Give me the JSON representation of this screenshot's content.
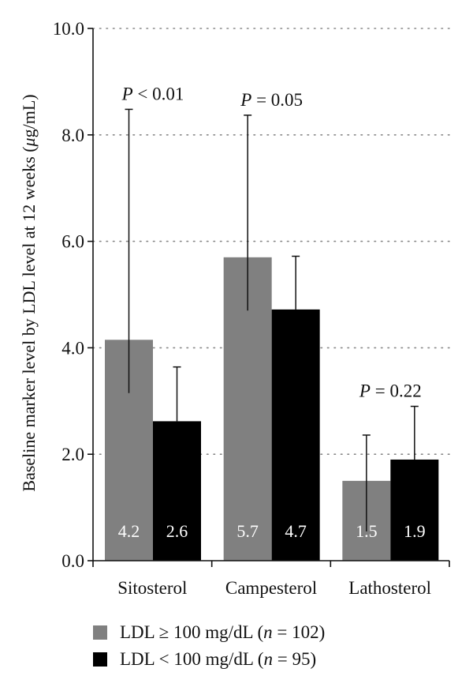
{
  "chart_data": {
    "type": "bar",
    "ylabel_parts": [
      "Baseline marker level by LDL level at 12 weeks (",
      "μ",
      "g/mL)"
    ],
    "ylim": [
      0,
      10
    ],
    "y_ticks": [
      "0.0",
      "2.0",
      "4.0",
      "6.0",
      "8.0",
      "10.0"
    ],
    "grid": "horizontal dotted",
    "categories": [
      "Sitosterol",
      "Campesterol",
      "Lathosterol"
    ],
    "series": [
      {
        "name": "LDL ≥ 100 mg/dL (n = 102)",
        "color": "#808080",
        "values": [
          4.15,
          5.7,
          1.5
        ],
        "value_labels": [
          "4.2",
          "5.7",
          "1.5"
        ],
        "error_low": [
          3.15,
          4.7,
          0.55
        ],
        "error_high": [
          8.48,
          8.37,
          2.36
        ]
      },
      {
        "name": "LDL < 100 mg/dL (n = 95)",
        "color": "#000000",
        "values": [
          2.62,
          4.72,
          1.9
        ],
        "value_labels": [
          "2.6",
          "4.7",
          "1.9"
        ],
        "error_low": [
          2.62,
          4.72,
          1.9
        ],
        "error_high": [
          3.64,
          5.72,
          2.9
        ]
      }
    ],
    "p_values": [
      "P < 0.01",
      "P = 0.05",
      "P = 0.22"
    ],
    "legend_placement": "bottom",
    "legend": [
      {
        "prefix": "LDL ≥ 100 mg/dL (",
        "n": "n",
        "suffix": " = 102)"
      },
      {
        "prefix": "LDL < 100 mg/dL (",
        "n": "n",
        "suffix": " = 95)"
      }
    ]
  }
}
